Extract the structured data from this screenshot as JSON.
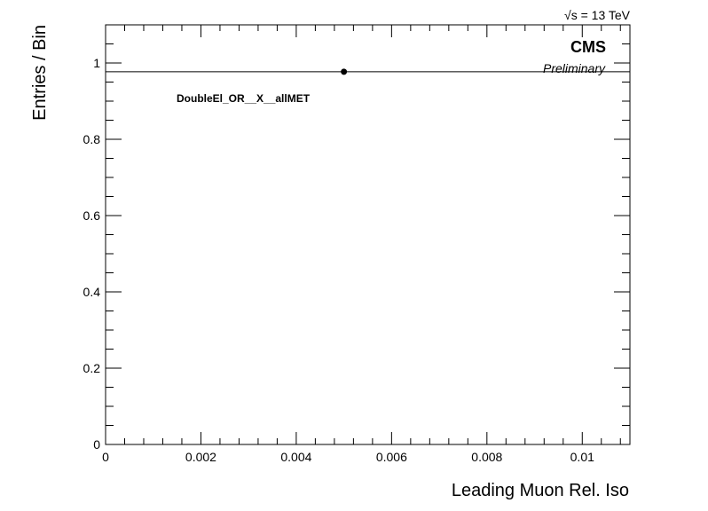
{
  "chart_data": {
    "type": "scatter",
    "title": "",
    "xlabel": "Leading Muon Rel. Iso",
    "ylabel": "Entries / Bin",
    "xlim": [
      0,
      0.011
    ],
    "ylim": [
      0,
      1.1
    ],
    "x_major_ticks": [
      0,
      0.002,
      0.004,
      0.006,
      0.008,
      0.01
    ],
    "x_tick_labels": [
      "0",
      "0.002",
      "0.004",
      "0.006",
      "0.008",
      "0.01"
    ],
    "y_major_ticks": [
      0,
      0.2,
      0.4,
      0.6,
      0.8,
      1
    ],
    "y_tick_labels": [
      "0",
      "0.2",
      "0.4",
      "0.6",
      "0.8",
      "1"
    ],
    "grid": false,
    "series": [
      {
        "name": "",
        "points": [
          {
            "x": 0.005,
            "y": 0.977,
            "xerr": [
              0.005,
              0.006
            ]
          }
        ]
      }
    ],
    "annotations": {
      "energy": "√s = 13 TeV",
      "experiment": "CMS",
      "status": "Preliminary",
      "selection": "DoubleEl_OR__X__allMET"
    }
  }
}
